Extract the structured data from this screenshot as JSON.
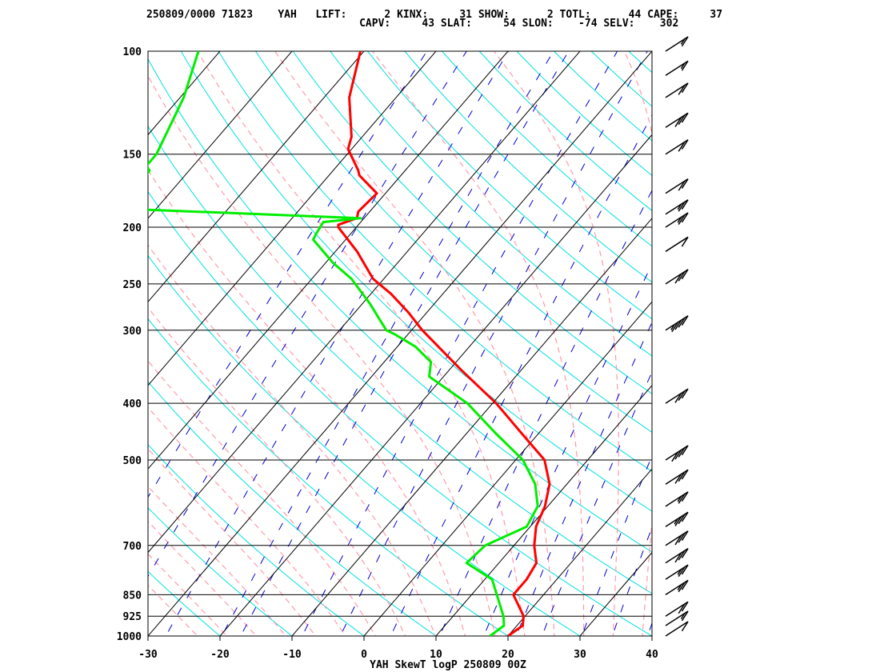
{
  "header": {
    "line1": "250809/0000 71823    YAH   LIFT:      2 KINX:     31 SHOW:      2 TOTL:      44 CAPE:     37",
    "line2": "                                  CAPV:     43 SLAT:     54 SLON:    -74 SELV:    302"
  },
  "footer_title": "YAH SkewT logP 250809 00Z",
  "colors": {
    "temperature": "#ff0000",
    "dewpoint": "#00ee00",
    "dry_adiabat": "#00e0e0",
    "moist_adiabat": "#ff9aaa",
    "mixing_ratio": "#0000cc",
    "isotherm": "#000000",
    "isobar": "#000000",
    "wind_barb": "#000000"
  },
  "chart_data": {
    "type": "line",
    "diagram": "skew-T log-P",
    "title": "YAH SkewT logP 250809 00Z",
    "xlabel": "",
    "ylabel": "",
    "xlim": [
      -30,
      40
    ],
    "ylim_hPa": [
      1000,
      100
    ],
    "y_scale": "log",
    "x_ticks": [
      -30,
      -20,
      -10,
      0,
      10,
      20,
      30,
      40
    ],
    "x_tick_labels": [
      "-30",
      "-20",
      "-10",
      "0",
      "10",
      "20",
      "30",
      "40"
    ],
    "pressure_levels": [
      1000,
      925,
      850,
      700,
      500,
      400,
      300,
      250,
      200,
      150,
      100
    ],
    "pressure_labels": [
      "1000",
      "925",
      "850",
      "700",
      "500",
      "400",
      "300",
      "250",
      "200",
      "150",
      "100"
    ],
    "series": [
      {
        "name": "temperature",
        "pressure": [
          1000,
          960,
          925,
          850,
          800,
          750,
          700,
          650,
          600,
          550,
          500,
          450,
          400,
          350,
          300,
          280,
          260,
          245,
          220,
          200,
          198,
          193,
          188,
          175,
          163,
          160,
          147,
          140,
          120,
          100
        ],
        "temperature": [
          20.0,
          20.8,
          19.8,
          15.8,
          15.8,
          15.2,
          12.8,
          10.8,
          9.6,
          7.6,
          4.0,
          -2.4,
          -9.5,
          -18.5,
          -28.5,
          -32.5,
          -37.2,
          -41.5,
          -47.0,
          -52.5,
          -52.8,
          -51.0,
          -51.6,
          -51.2,
          -55.8,
          -56.5,
          -60.5,
          -61.5,
          -66.5,
          -70.5
        ]
      },
      {
        "name": "dewpoint",
        "pressure": [
          1000,
          960,
          925,
          850,
          800,
          750,
          700,
          650,
          600,
          550,
          500,
          450,
          400,
          360,
          340,
          320,
          305,
          300,
          270,
          245,
          230,
          210,
          205,
          196,
          193,
          186,
          160,
          157,
          150,
          120,
          100
        ],
        "temperature": [
          17.5,
          18.2,
          17.0,
          13.5,
          11.0,
          5.5,
          6.0,
          9.5,
          8.6,
          5.6,
          1.0,
          -6.0,
          -13.5,
          -22.0,
          -23.5,
          -27.5,
          -31.8,
          -33.5,
          -39.0,
          -44.5,
          -49.0,
          -54.5,
          -54.8,
          -55.2,
          -50.5,
          -84.5,
          -85.5,
          -86.5,
          -86.5,
          -89.5,
          -93.0
        ]
      }
    ],
    "wind_barbs": [
      {
        "pressure": 1000,
        "speed_kt": 10
      },
      {
        "pressure": 960,
        "speed_kt": 15
      },
      {
        "pressure": 925,
        "speed_kt": 20
      },
      {
        "pressure": 850,
        "speed_kt": 25
      },
      {
        "pressure": 800,
        "speed_kt": 25
      },
      {
        "pressure": 750,
        "speed_kt": 30
      },
      {
        "pressure": 700,
        "speed_kt": 30
      },
      {
        "pressure": 650,
        "speed_kt": 35
      },
      {
        "pressure": 600,
        "speed_kt": 25
      },
      {
        "pressure": 550,
        "speed_kt": 30
      },
      {
        "pressure": 500,
        "speed_kt": 40
      },
      {
        "pressure": 400,
        "speed_kt": 30
      },
      {
        "pressure": 300,
        "speed_kt": 45
      },
      {
        "pressure": 250,
        "speed_kt": 30
      },
      {
        "pressure": 220,
        "speed_kt": 10
      },
      {
        "pressure": 200,
        "speed_kt": 25
      },
      {
        "pressure": 190,
        "speed_kt": 25
      },
      {
        "pressure": 175,
        "speed_kt": 20
      },
      {
        "pressure": 150,
        "speed_kt": 20
      },
      {
        "pressure": 135,
        "speed_kt": 30
      },
      {
        "pressure": 120,
        "speed_kt": 20
      },
      {
        "pressure": 110,
        "speed_kt": 15
      },
      {
        "pressure": 100,
        "speed_kt": 15
      }
    ]
  }
}
